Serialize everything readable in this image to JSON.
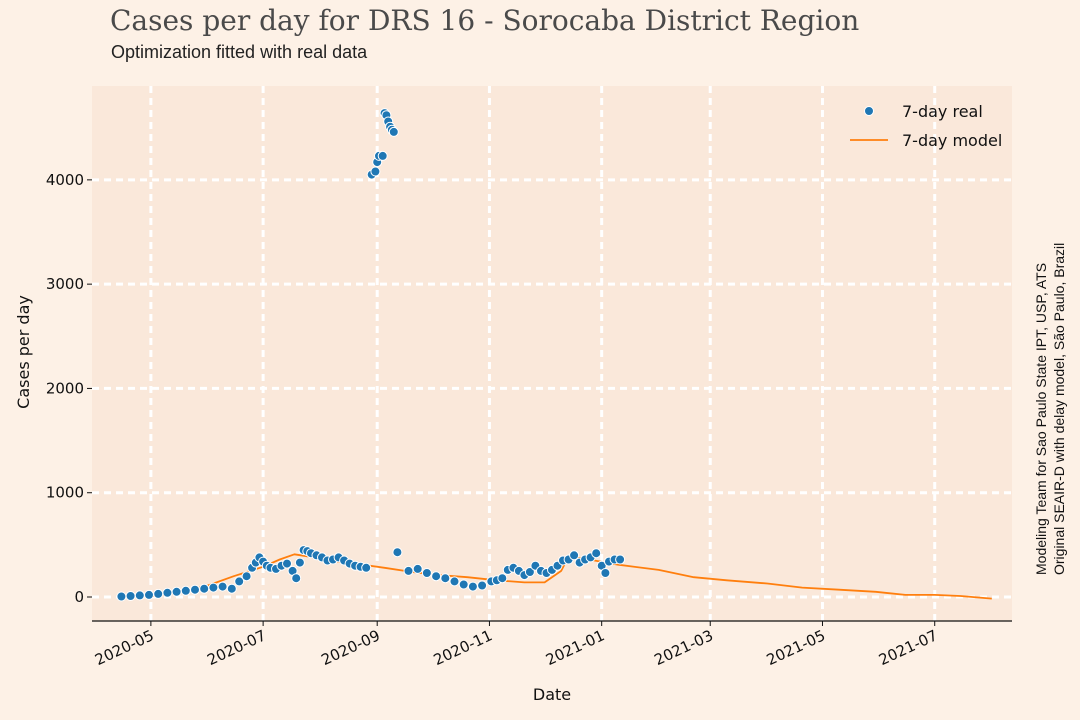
{
  "header": {
    "title": "Cases per day for DRS 16 - Sorocaba District Region",
    "subtitle": "Optimization fitted with real data"
  },
  "credits": {
    "line1": "Modeling Team for Sao Paulo State IPT, USP, ATS",
    "line2": "Original SEAIR-D with delay model, São Paulo, Brazil"
  },
  "colors": {
    "background": "#fdf1e6",
    "plot_area": "#fae8da",
    "real": "#1f77b4",
    "model": "#ff7f0e",
    "grid": "#ffffff"
  },
  "chart_data": {
    "type": "line",
    "title": "Cases per day for DRS 16 - Sorocaba District Region",
    "subtitle": "Optimization fitted with real data",
    "xlabel": "Date",
    "ylabel": "Cases per day",
    "xlim": [
      "2020-03-30",
      "2021-08-12"
    ],
    "ylim": [
      -230,
      4900
    ],
    "x_ticks": [
      "2020-05-01",
      "2020-07-01",
      "2020-09-01",
      "2020-11-01",
      "2021-01-01",
      "2021-03-01",
      "2021-05-01",
      "2021-07-01"
    ],
    "x_tick_labels": [
      "2020-05",
      "2020-07",
      "2020-09",
      "2020-11",
      "2021-01",
      "2021-03",
      "2021-05",
      "2021-07"
    ],
    "y_ticks": [
      0,
      1000,
      2000,
      3000,
      4000
    ],
    "y_tick_labels": [
      "0",
      "1000",
      "2000",
      "3000",
      "4000"
    ],
    "grid": true,
    "legend_position": "top-right",
    "series": [
      {
        "name": "7-day real",
        "type": "scatter",
        "x": [
          "2020-04-15",
          "2020-04-20",
          "2020-04-25",
          "2020-04-30",
          "2020-05-05",
          "2020-05-10",
          "2020-05-15",
          "2020-05-20",
          "2020-05-25",
          "2020-05-30",
          "2020-06-04",
          "2020-06-09",
          "2020-06-14",
          "2020-06-18",
          "2020-06-22",
          "2020-06-25",
          "2020-06-27",
          "2020-06-29",
          "2020-07-01",
          "2020-07-03",
          "2020-07-05",
          "2020-07-08",
          "2020-07-11",
          "2020-07-14",
          "2020-07-17",
          "2020-07-19",
          "2020-07-21",
          "2020-07-23",
          "2020-07-25",
          "2020-07-27",
          "2020-07-30",
          "2020-08-02",
          "2020-08-05",
          "2020-08-08",
          "2020-08-11",
          "2020-08-14",
          "2020-08-17",
          "2020-08-20",
          "2020-08-23",
          "2020-08-26",
          "2020-08-29",
          "2020-08-31",
          "2020-09-01",
          "2020-09-02",
          "2020-09-04",
          "2020-09-05",
          "2020-09-06",
          "2020-09-07",
          "2020-09-08",
          "2020-09-09",
          "2020-09-10",
          "2020-09-12",
          "2020-09-18",
          "2020-09-23",
          "2020-09-28",
          "2020-10-03",
          "2020-10-08",
          "2020-10-13",
          "2020-10-18",
          "2020-10-23",
          "2020-10-28",
          "2020-11-02",
          "2020-11-05",
          "2020-11-08",
          "2020-11-11",
          "2020-11-14",
          "2020-11-17",
          "2020-11-20",
          "2020-11-23",
          "2020-11-26",
          "2020-11-29",
          "2020-12-02",
          "2020-12-05",
          "2020-12-08",
          "2020-12-11",
          "2020-12-14",
          "2020-12-17",
          "2020-12-20",
          "2020-12-23",
          "2020-12-26",
          "2020-12-29",
          "2021-01-01",
          "2021-01-03",
          "2021-01-05",
          "2021-01-08",
          "2021-01-11"
        ],
        "values": [
          5,
          10,
          15,
          20,
          30,
          40,
          50,
          60,
          70,
          80,
          90,
          100,
          80,
          150,
          200,
          280,
          330,
          380,
          340,
          300,
          280,
          270,
          300,
          320,
          250,
          180,
          330,
          450,
          440,
          420,
          400,
          380,
          350,
          360,
          380,
          350,
          320,
          300,
          290,
          280,
          4050,
          4080,
          4170,
          4230,
          4230,
          4640,
          4620,
          4560,
          4510,
          4480,
          4460,
          430,
          250,
          270,
          230,
          200,
          180,
          150,
          120,
          100,
          110,
          150,
          160,
          180,
          260,
          280,
          250,
          210,
          240,
          300,
          250,
          230,
          260,
          300,
          350,
          360,
          400,
          330,
          360,
          380,
          420,
          300,
          230,
          340,
          360,
          360
        ]
      },
      {
        "name": "7-day model",
        "type": "line",
        "x": [
          "2020-04-15",
          "2020-05-01",
          "2020-05-15",
          "2020-06-01",
          "2020-06-15",
          "2020-07-01",
          "2020-07-10",
          "2020-07-18",
          "2020-07-25",
          "2020-08-05",
          "2020-08-20",
          "2020-09-05",
          "2020-09-20",
          "2020-10-05",
          "2020-10-20",
          "2020-11-05",
          "2020-11-20",
          "2020-12-01",
          "2020-12-10",
          "2020-12-14",
          "2020-12-25",
          "2021-01-10",
          "2021-02-01",
          "2021-02-20",
          "2021-03-10",
          "2021-04-01",
          "2021-04-20",
          "2021-05-10",
          "2021-05-30",
          "2021-06-15",
          "2021-07-01",
          "2021-07-15",
          "2021-08-01"
        ],
        "values": [
          0,
          5,
          40,
          110,
          200,
          290,
          360,
          410,
          390,
          350,
          320,
          280,
          240,
          210,
          190,
          160,
          140,
          140,
          250,
          390,
          360,
          310,
          260,
          190,
          160,
          130,
          90,
          70,
          50,
          20,
          20,
          10,
          -15
        ]
      }
    ]
  }
}
